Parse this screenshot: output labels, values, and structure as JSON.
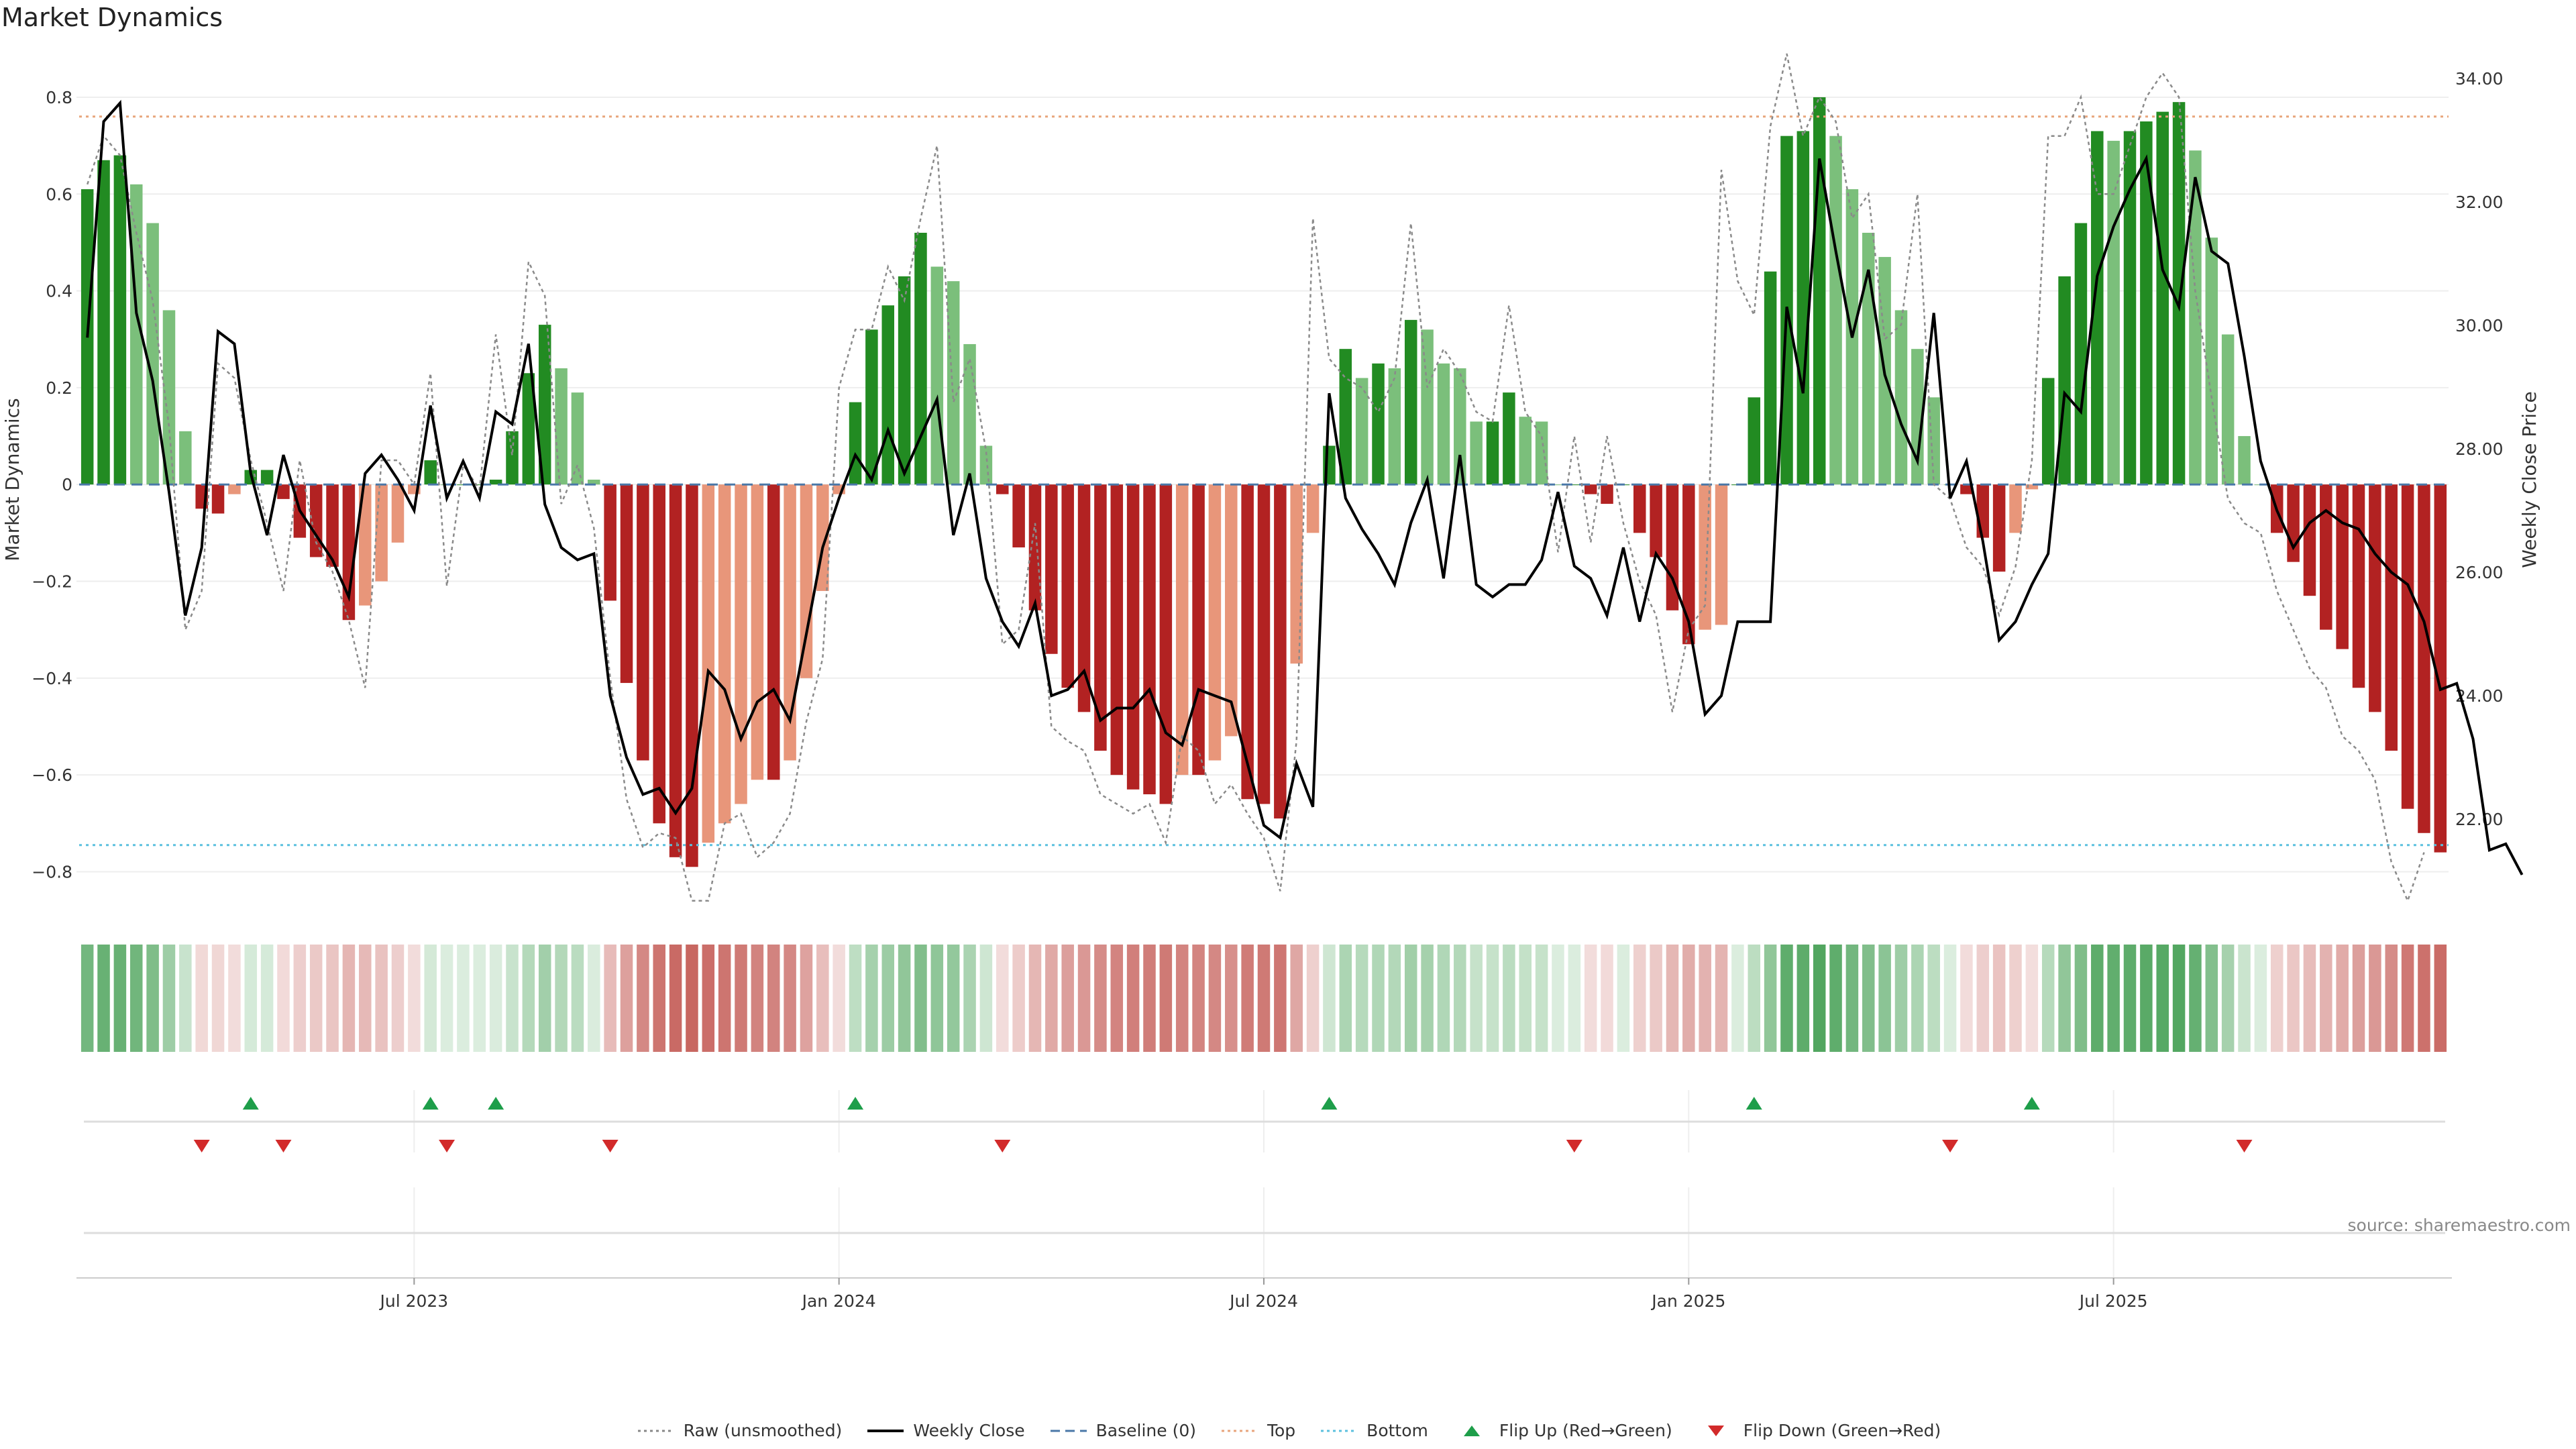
{
  "chart_data": {
    "type": "bar",
    "title": "Market Dynamics",
    "ylabel": "Market Dynamics",
    "y2label": "Weekly Close Price",
    "ylim": [
      -0.87,
      0.89
    ],
    "y2lim": [
      20.6,
      34.4
    ],
    "yticks": [
      "0.8",
      "0.6",
      "0.4",
      "0.2",
      "0",
      "−0.2",
      "−0.4",
      "−0.6",
      "−0.8"
    ],
    "yticks_values": [
      0.8,
      0.6,
      0.4,
      0.2,
      0,
      -0.2,
      -0.4,
      -0.6,
      -0.8
    ],
    "y2ticks": [
      "34.00",
      "32.00",
      "30.00",
      "28.00",
      "26.00",
      "24.00",
      "22.00"
    ],
    "y2ticks_values": [
      34,
      32,
      30,
      28,
      26,
      24,
      22
    ],
    "xticks": [
      {
        "label": "Jul 2023",
        "week": 20
      },
      {
        "label": "Jan 2024",
        "week": 46
      },
      {
        "label": "Jul 2024",
        "week": 72
      },
      {
        "label": "Jan 2025",
        "week": 98
      },
      {
        "label": "Jul 2025",
        "week": 124
      }
    ],
    "top_level": 0.76,
    "bottom_level": -0.745,
    "dynamics": [
      0.61,
      0.67,
      0.68,
      0.62,
      0.54,
      0.36,
      0.11,
      -0.05,
      -0.06,
      -0.02,
      0.03,
      0.03,
      -0.03,
      -0.11,
      -0.15,
      -0.17,
      -0.28,
      -0.25,
      -0.2,
      -0.12,
      -0.02,
      0.05,
      0.0,
      0.0,
      0.0,
      0.01,
      0.11,
      0.23,
      0.33,
      0.24,
      0.19,
      0.01,
      -0.24,
      -0.41,
      -0.57,
      -0.7,
      -0.77,
      -0.79,
      -0.74,
      -0.7,
      -0.66,
      -0.61,
      -0.61,
      -0.57,
      -0.4,
      -0.22,
      -0.02,
      0.17,
      0.32,
      0.37,
      0.43,
      0.52,
      0.45,
      0.42,
      0.29,
      0.08,
      -0.02,
      -0.13,
      -0.26,
      -0.35,
      -0.42,
      -0.47,
      -0.55,
      -0.6,
      -0.63,
      -0.64,
      -0.66,
      -0.6,
      -0.6,
      -0.57,
      -0.52,
      -0.65,
      -0.66,
      -0.69,
      -0.37,
      -0.1,
      0.08,
      0.28,
      0.22,
      0.25,
      0.24,
      0.34,
      0.32,
      0.25,
      0.24,
      0.13,
      0.13,
      0.19,
      0.14,
      0.13,
      0.0,
      0.0,
      -0.02,
      -0.04,
      0.0,
      -0.1,
      -0.15,
      -0.26,
      -0.33,
      -0.3,
      -0.29,
      0.0,
      0.18,
      0.44,
      0.72,
      0.73,
      0.8,
      0.72,
      0.61,
      0.52,
      0.47,
      0.36,
      0.28,
      0.18,
      0.0,
      -0.02,
      -0.11,
      -0.18,
      -0.1,
      -0.01,
      0.22,
      0.43,
      0.54,
      0.73,
      0.71,
      0.73,
      0.75,
      0.77,
      0.79,
      0.69,
      0.51,
      0.31,
      0.1,
      0.0,
      -0.1,
      -0.16,
      -0.23,
      -0.3,
      -0.34,
      -0.42,
      -0.47,
      -0.55,
      -0.67,
      -0.72,
      -0.76
    ],
    "weekly_close": [
      29.8,
      33.3,
      33.6,
      30.2,
      29.1,
      27.3,
      25.3,
      26.4,
      29.9,
      29.7,
      27.6,
      26.6,
      27.9,
      27.0,
      26.6,
      26.2,
      25.6,
      27.6,
      27.9,
      27.5,
      27.0,
      28.7,
      27.2,
      27.8,
      27.2,
      28.6,
      28.4,
      29.7,
      27.1,
      26.4,
      26.2,
      26.3,
      24.0,
      23.0,
      22.4,
      22.5,
      22.1,
      22.5,
      24.4,
      24.1,
      23.3,
      23.9,
      24.1,
      23.6,
      25.0,
      26.4,
      27.2,
      27.9,
      27.5,
      28.3,
      27.6,
      28.2,
      28.8,
      26.6,
      27.6,
      25.9,
      25.2,
      24.8,
      25.5,
      24.0,
      24.1,
      24.4,
      23.6,
      23.8,
      23.8,
      24.1,
      23.4,
      23.2,
      24.1,
      24.0,
      23.9,
      22.9,
      21.9,
      21.7,
      22.9,
      22.2,
      28.9,
      27.2,
      26.7,
      26.3,
      25.8,
      26.8,
      27.5,
      25.9,
      27.9,
      25.8,
      25.6,
      25.8,
      25.8,
      26.2,
      27.3,
      26.1,
      25.9,
      25.3,
      26.4,
      25.2,
      26.3,
      25.9,
      25.2,
      23.7,
      24.0,
      25.2,
      25.2,
      25.2,
      30.3,
      28.9,
      32.7,
      31.2,
      29.8,
      30.9,
      29.2,
      28.4,
      27.8,
      30.2,
      27.2,
      27.8,
      26.5,
      24.9,
      25.2,
      25.8,
      26.3,
      28.9,
      28.6,
      30.8,
      31.6,
      32.2,
      32.7,
      30.9,
      30.3,
      32.4,
      31.2,
      31.0,
      29.5,
      27.8,
      27.0,
      26.4,
      26.8,
      27.0,
      26.8,
      26.7,
      26.3,
      26.0,
      25.8,
      25.2,
      24.1,
      24.2,
      23.3,
      21.5,
      21.6,
      21.1
    ],
    "raw": [
      0.62,
      0.72,
      0.68,
      0.52,
      0.38,
      0.12,
      -0.3,
      -0.22,
      0.25,
      0.22,
      0.05,
      -0.08,
      -0.22,
      0.05,
      -0.12,
      -0.18,
      -0.28,
      -0.42,
      0.05,
      0.05,
      0.0,
      0.23,
      -0.21,
      0.04,
      -0.01,
      0.31,
      0.06,
      0.46,
      0.39,
      -0.04,
      0.04,
      -0.09,
      -0.4,
      -0.65,
      -0.75,
      -0.72,
      -0.73,
      -0.86,
      -0.86,
      -0.7,
      -0.68,
      -0.77,
      -0.74,
      -0.68,
      -0.49,
      -0.36,
      0.2,
      0.32,
      0.32,
      0.45,
      0.38,
      0.55,
      0.7,
      0.17,
      0.26,
      0.07,
      -0.33,
      -0.3,
      -0.08,
      -0.5,
      -0.53,
      -0.55,
      -0.64,
      -0.66,
      -0.68,
      -0.66,
      -0.74,
      -0.52,
      -0.55,
      -0.66,
      -0.62,
      -0.68,
      -0.73,
      -0.84,
      -0.53,
      0.55,
      0.26,
      0.22,
      0.2,
      0.15,
      0.22,
      0.54,
      0.2,
      0.28,
      0.23,
      0.15,
      0.13,
      0.37,
      0.15,
      0.1,
      -0.14,
      0.1,
      -0.12,
      0.1,
      -0.08,
      -0.2,
      -0.27,
      -0.47,
      -0.3,
      -0.25,
      0.65,
      0.42,
      0.35,
      0.74,
      0.89,
      0.72,
      0.8,
      0.75,
      0.55,
      0.6,
      0.3,
      0.33,
      0.6,
      0.0,
      -0.03,
      -0.13,
      -0.17,
      -0.27,
      -0.17,
      0.05,
      0.72,
      0.72,
      0.8,
      0.6,
      0.6,
      0.7,
      0.8,
      0.85,
      0.8,
      0.4,
      0.18,
      -0.03,
      -0.08,
      -0.1,
      -0.22,
      -0.3,
      -0.38,
      -0.42,
      -0.52,
      -0.55,
      -0.61,
      -0.78,
      -0.86,
      -0.76
    ],
    "flip_up_weeks": [
      10,
      21,
      25,
      47,
      76,
      102,
      119
    ],
    "flip_down_weeks": [
      7,
      12,
      22,
      32,
      56,
      91,
      114,
      132
    ],
    "legend": [
      {
        "label": "Raw (unsmoothed)",
        "style": "dotted",
        "color": "#888888"
      },
      {
        "label": "Weekly Close",
        "style": "solid",
        "color": "#000000"
      },
      {
        "label": "Baseline (0)",
        "style": "dashed",
        "color": "#4a78a8"
      },
      {
        "label": "Top",
        "style": "dotted",
        "color": "#e8a57c"
      },
      {
        "label": "Bottom",
        "style": "dotted",
        "color": "#5bc0de"
      },
      {
        "label": "Flip Up (Red→Green)",
        "style": "triangle-up",
        "color": "#1e9e4a"
      },
      {
        "label": "Flip Down (Green→Red)",
        "style": "triangle-down",
        "color": "#d22a2a"
      }
    ],
    "colors": {
      "strong_green": "#228b22",
      "light_green": "#7bbf7b",
      "strong_red": "#b22222",
      "light_red": "#e8967a",
      "heat_green": "#3a9a4a",
      "heat_red": "#c0504a"
    },
    "grid": true,
    "legend_placement": "bottom"
  },
  "source": "source: sharemaestro.com"
}
